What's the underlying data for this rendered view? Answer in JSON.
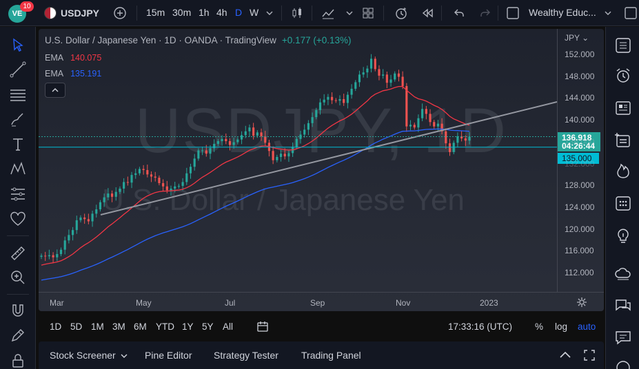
{
  "topbar": {
    "avatar_text": "VE",
    "notifications": "10",
    "symbol": "USDJPY",
    "intervals": [
      "15m",
      "30m",
      "1h",
      "4h",
      "D",
      "W"
    ],
    "active_interval": "D",
    "layout_name": "Wealthy Educ..."
  },
  "legend": {
    "title": "U.S. Dollar / Japanese Yen · 1D · OANDA · TradingView",
    "change": "+0.177 (+0.13%)",
    "ema1_label": "EMA",
    "ema1_value": "140.075",
    "ema2_label": "EMA",
    "ema2_value": "135.191"
  },
  "watermark": {
    "symbol": "USDJPY, 1D",
    "name": "U.S. Dollar / Japanese Yen"
  },
  "price_axis": {
    "currency": "JPY",
    "ticks": [
      "152.000",
      "148.000",
      "144.000",
      "140.000",
      "136.000",
      "132.000",
      "128.000",
      "124.000",
      "120.000",
      "116.000",
      "112.000"
    ],
    "last_price": "136.918",
    "countdown": "04:26:44",
    "level": "135.000"
  },
  "time_axis": {
    "labels": [
      "Mar",
      "May",
      "Jul",
      "Sep",
      "Nov",
      "2023"
    ]
  },
  "range_bar": {
    "ranges": [
      "1D",
      "5D",
      "1M",
      "3M",
      "6M",
      "YTD",
      "1Y",
      "5Y",
      "All"
    ],
    "clock": "17:33:16 (UTC)",
    "percent": "%",
    "log": "log",
    "auto": "auto"
  },
  "bottom_panel": {
    "tabs": [
      "Stock Screener",
      "Pine Editor",
      "Strategy Tester",
      "Trading Panel"
    ]
  },
  "colors": {
    "up": "#26a69a",
    "down": "#ef5350",
    "ema_fast": "#f23645",
    "ema_slow": "#2962ff",
    "level": "#00bcd4",
    "accent": "#2962ff"
  },
  "chart_data": {
    "type": "candlestick",
    "symbol": "USDJPY",
    "interval": "1D",
    "ylim": [
      110,
      154
    ],
    "grid": false,
    "close": [
      115.1,
      115.0,
      115.2,
      114.8,
      115.4,
      116.2,
      117.9,
      118.9,
      119.8,
      121.6,
      122.1,
      121.8,
      121.4,
      122.8,
      123.6,
      124.9,
      125.8,
      126.5,
      125.9,
      126.8,
      127.4,
      128.6,
      128.5,
      129.9,
      130.2,
      131.0,
      130.8,
      130.0,
      129.6,
      129.4,
      128.4,
      127.8,
      127.1,
      127.4,
      127.8,
      127.9,
      128.6,
      130.2,
      131.4,
      132.9,
      134.4,
      134.4,
      133.8,
      134.8,
      135.6,
      136.1,
      136.5,
      136.1,
      135.4,
      135.9,
      136.4,
      137.2,
      137.9,
      138.6,
      137.1,
      137.7,
      137.0,
      135.8,
      134.3,
      132.6,
      133.2,
      133.8,
      133.3,
      133.9,
      135.0,
      136.5,
      137.3,
      138.2,
      139.4,
      140.5,
      141.8,
      143.2,
      143.7,
      144.2,
      143.6,
      143.5,
      143.8,
      143.1,
      144.6,
      145.7,
      146.9,
      148.3,
      148.7,
      149.4,
      151.2,
      149.3,
      148.1,
      148.3,
      146.8,
      147.4,
      148.5,
      147.9,
      146.2,
      138.8,
      139.1,
      138.6,
      140.3,
      142.0,
      141.1,
      139.6,
      138.8,
      139.3,
      137.9,
      135.7,
      134.1,
      135.8,
      137.0,
      136.6,
      136.2,
      136.9
    ],
    "ema_fast_last": 140.075,
    "ema_slow_last": 135.191,
    "last": 136.918,
    "horizontal_level": 135.0
  }
}
